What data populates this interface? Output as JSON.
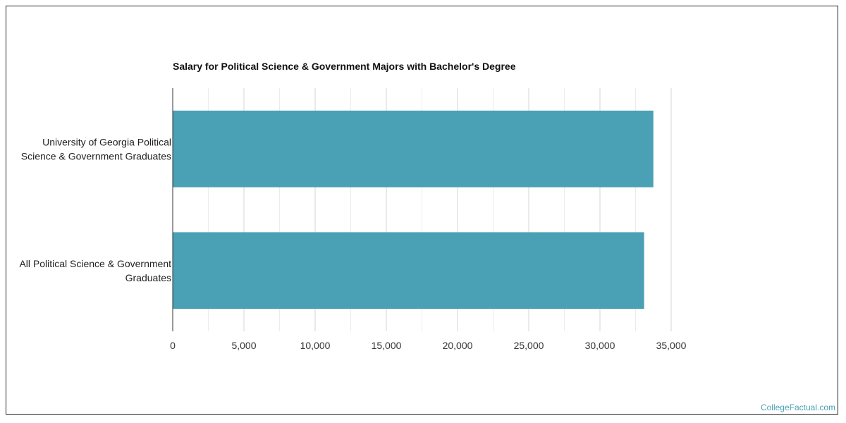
{
  "chart_data": {
    "type": "bar",
    "orientation": "horizontal",
    "title": "Salary for Political Science & Government Majors with Bachelor's Degree",
    "xlabel": "",
    "ylabel": "",
    "categories": [
      [
        "University of Georgia Political",
        "Science & Government Graduates"
      ],
      [
        "All Political Science & Government",
        "Graduates"
      ]
    ],
    "values": [
      33750,
      33100
    ],
    "xlim": [
      0,
      35000
    ],
    "x_ticks": [
      0,
      5000,
      10000,
      15000,
      20000,
      25000,
      30000,
      35000
    ],
    "x_tick_labels": [
      "0",
      "5,000",
      "10,000",
      "15,000",
      "20,000",
      "25,000",
      "30,000",
      "35,000"
    ],
    "grid": "vertical",
    "legend": "none",
    "bar_color": "#4aa0b5"
  },
  "watermark": "CollegeFactual.com"
}
